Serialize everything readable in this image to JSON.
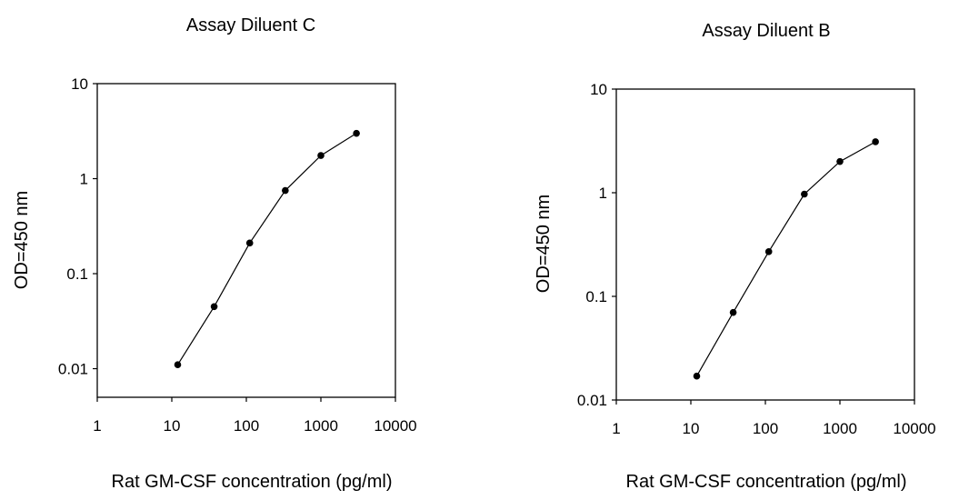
{
  "chart_data": [
    {
      "type": "line",
      "title": "Assay Diluent C",
      "xlabel": "Rat GM-CSF concentration (pg/ml)",
      "ylabel": "OD=450 nm",
      "x_scale": "log",
      "y_scale": "log",
      "xlim": [
        1,
        10000
      ],
      "ylim": [
        0.005,
        10
      ],
      "x_ticks": [
        "1",
        "10",
        "100",
        "1000",
        "10000"
      ],
      "y_ticks": [
        "10",
        "1",
        "0.1",
        "0.01"
      ],
      "grid": false,
      "series": [
        {
          "x": [
            12,
            37,
            111,
            333,
            1000,
            3000
          ],
          "y": [
            0.011,
            0.045,
            0.21,
            0.75,
            1.75,
            3.0
          ]
        }
      ]
    },
    {
      "type": "line",
      "title": "Assay Diluent B",
      "xlabel": "Rat GM-CSF  concentration (pg/ml)",
      "ylabel": "OD=450 nm",
      "x_scale": "log",
      "y_scale": "log",
      "xlim": [
        1,
        10000
      ],
      "ylim": [
        0.01,
        10
      ],
      "x_ticks": [
        "1",
        "10",
        "100",
        "1000",
        "10000"
      ],
      "y_ticks": [
        "10",
        "1",
        "0.1",
        "0.01"
      ],
      "grid": false,
      "series": [
        {
          "x": [
            12,
            37,
            111,
            333,
            1000,
            3000
          ],
          "y": [
            0.017,
            0.07,
            0.27,
            0.97,
            2.0,
            3.1
          ]
        }
      ]
    }
  ]
}
